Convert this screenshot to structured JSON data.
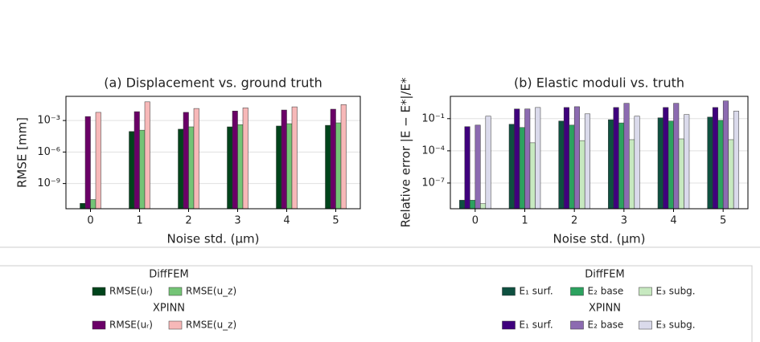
{
  "chart_data": [
    {
      "type": "bar",
      "title": "(a) Displacement vs. ground truth",
      "xlabel": "Noise std. (μm)",
      "ylabel": "RMSE [mm]",
      "categories": [
        "0",
        "1",
        "2",
        "3",
        "4",
        "5"
      ],
      "log_y": true,
      "grid": true,
      "ylim": [
        4e-12,
        0.2
      ],
      "yticks": [
        {
          "value": 1e-09,
          "label": "10⁻⁹"
        },
        {
          "value": 1e-06,
          "label": "10⁻⁶"
        },
        {
          "value": 0.001,
          "label": "10⁻³"
        }
      ],
      "groups": [
        {
          "name": "DiffFEM",
          "series": [
            {
              "name": "RMSE(uᵣ)",
              "color": "#00441b",
              "values": [
                1.3e-11,
                9e-05,
                0.00015,
                0.00025,
                0.0003,
                0.00035
              ]
            },
            {
              "name": "RMSE(u_z)",
              "color": "#74c476",
              "values": [
                3e-11,
                0.00012,
                0.00025,
                0.0004,
                0.0005,
                0.0006
              ]
            }
          ]
        },
        {
          "name": "XPINN",
          "series": [
            {
              "name": "RMSE(uᵣ)",
              "color": "#6a0067",
              "values": [
                0.0024,
                0.007,
                0.006,
                0.008,
                0.01,
                0.012
              ]
            },
            {
              "name": "RMSE(u_z)",
              "color": "#f7b8b8",
              "values": [
                0.006,
                0.06,
                0.014,
                0.016,
                0.02,
                0.033
              ]
            }
          ]
        }
      ]
    },
    {
      "type": "bar",
      "title": "(b) Elastic moduli vs. truth",
      "xlabel": "Noise std. (μm)",
      "ylabel": "Relative error |E − E*|/E*",
      "categories": [
        "0",
        "1",
        "2",
        "3",
        "4",
        "5"
      ],
      "log_y": true,
      "grid": true,
      "ylim": [
        4e-10,
        12
      ],
      "yticks": [
        {
          "value": 1e-07,
          "label": "10⁻⁷"
        },
        {
          "value": 0.0001,
          "label": "10⁻⁴"
        },
        {
          "value": 0.1,
          "label": "10⁻¹"
        }
      ],
      "groups": [
        {
          "name": "DiffFEM",
          "series": [
            {
              "name": "E₁ surf.",
              "color": "#0e5040",
              "values": [
                2.5e-09,
                0.03,
                0.06,
                0.08,
                0.12,
                0.14
              ]
            },
            {
              "name": "E₂ base",
              "color": "#2ca25f",
              "values": [
                2.5e-09,
                0.015,
                0.025,
                0.04,
                0.06,
                0.07
              ]
            },
            {
              "name": "E₃ subg.",
              "color": "#c7e9c0",
              "values": [
                1.2e-09,
                0.00056,
                0.0009,
                0.0011,
                0.0013,
                0.0011
              ]
            }
          ]
        },
        {
          "name": "XPINN",
          "series": [
            {
              "name": "E₁ surf.",
              "color": "#3f007d",
              "values": [
                0.018,
                0.8,
                1.1,
                1.1,
                1.1,
                1.1
              ]
            },
            {
              "name": "E₂ base",
              "color": "#8c6bb1",
              "values": [
                0.025,
                0.8,
                1.3,
                2.7,
                2.7,
                4.5
              ]
            },
            {
              "name": "E₃ subg.",
              "color": "#dadaeb",
              "values": [
                0.17,
                1.1,
                0.28,
                0.17,
                0.24,
                0.5
              ]
            }
          ]
        }
      ]
    }
  ]
}
